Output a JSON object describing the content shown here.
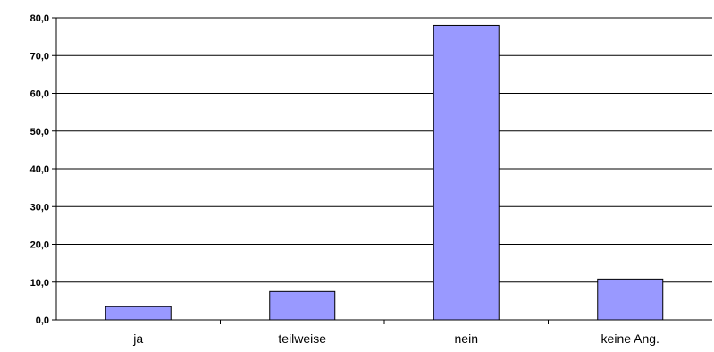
{
  "chart_data": {
    "type": "bar",
    "title": "",
    "xlabel": "",
    "ylabel": "",
    "categories": [
      "ja",
      "teilweise",
      "nein",
      "keine Ang."
    ],
    "values": [
      3.5,
      7.5,
      78.0,
      10.8
    ],
    "ylim": [
      0,
      80
    ],
    "ytick_step": 10,
    "ytick_labels": [
      "0,0",
      "10,0",
      "20,0",
      "30,0",
      "40,0",
      "50,0",
      "60,0",
      "70,0",
      "80,0"
    ],
    "grid": true,
    "legend": "none",
    "colors": {
      "bar_fill": "#9999ff",
      "bar_stroke": "#000000",
      "grid": "#000000",
      "axis": "#000000"
    }
  }
}
